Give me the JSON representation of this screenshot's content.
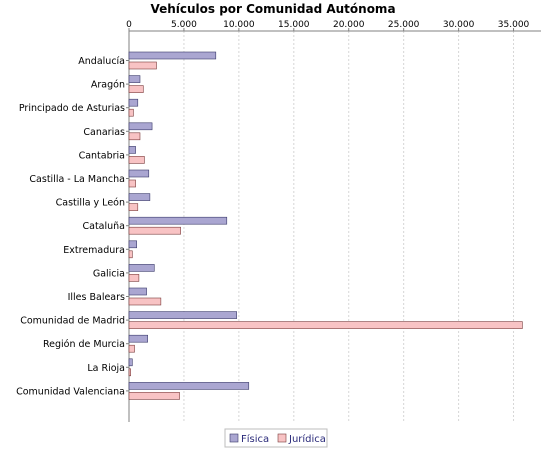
{
  "colors": {
    "fisica_fill": "#aaa6d1",
    "fisica_stroke": "#3a3a6a",
    "juridica_fill": "#f8c3c4",
    "juridica_stroke": "#7a3a3a",
    "grid": "#d6d6d6",
    "axis": "#808080"
  },
  "chart_data": {
    "type": "bar",
    "orientation": "horizontal",
    "title": "Vehículos por Comunidad Autónoma",
    "xlabel": "",
    "ylabel": "",
    "xlim": [
      0,
      37500
    ],
    "xticks": [
      0,
      5000,
      10000,
      15000,
      20000,
      25000,
      30000,
      35000
    ],
    "xtick_labels": [
      "0",
      "5.000",
      "10.000",
      "15.000",
      "20.000",
      "25.000",
      "30.000",
      "35.000"
    ],
    "axis_position": "top",
    "grid": true,
    "legend_position": "bottom",
    "categories": [
      "Andalucía",
      "Aragón",
      "Principado de Asturias",
      "Canarias",
      "Cantabria",
      "Castilla - La Mancha",
      "Castilla y León",
      "Cataluña",
      "Extremadura",
      "Galicia",
      "Illes Balears",
      "Comunidad de Madrid",
      "Región de Murcia",
      "La Rioja",
      "Comunidad Valenciana"
    ],
    "series": [
      {
        "name": "Física",
        "values": [
          7900,
          1000,
          800,
          2100,
          600,
          1800,
          1900,
          8900,
          700,
          2300,
          1600,
          9800,
          1700,
          300,
          10900
        ]
      },
      {
        "name": "Jurídica",
        "values": [
          2500,
          1300,
          400,
          1000,
          1400,
          600,
          800,
          4700,
          300,
          900,
          2900,
          35800,
          500,
          150,
          4600
        ]
      }
    ]
  }
}
